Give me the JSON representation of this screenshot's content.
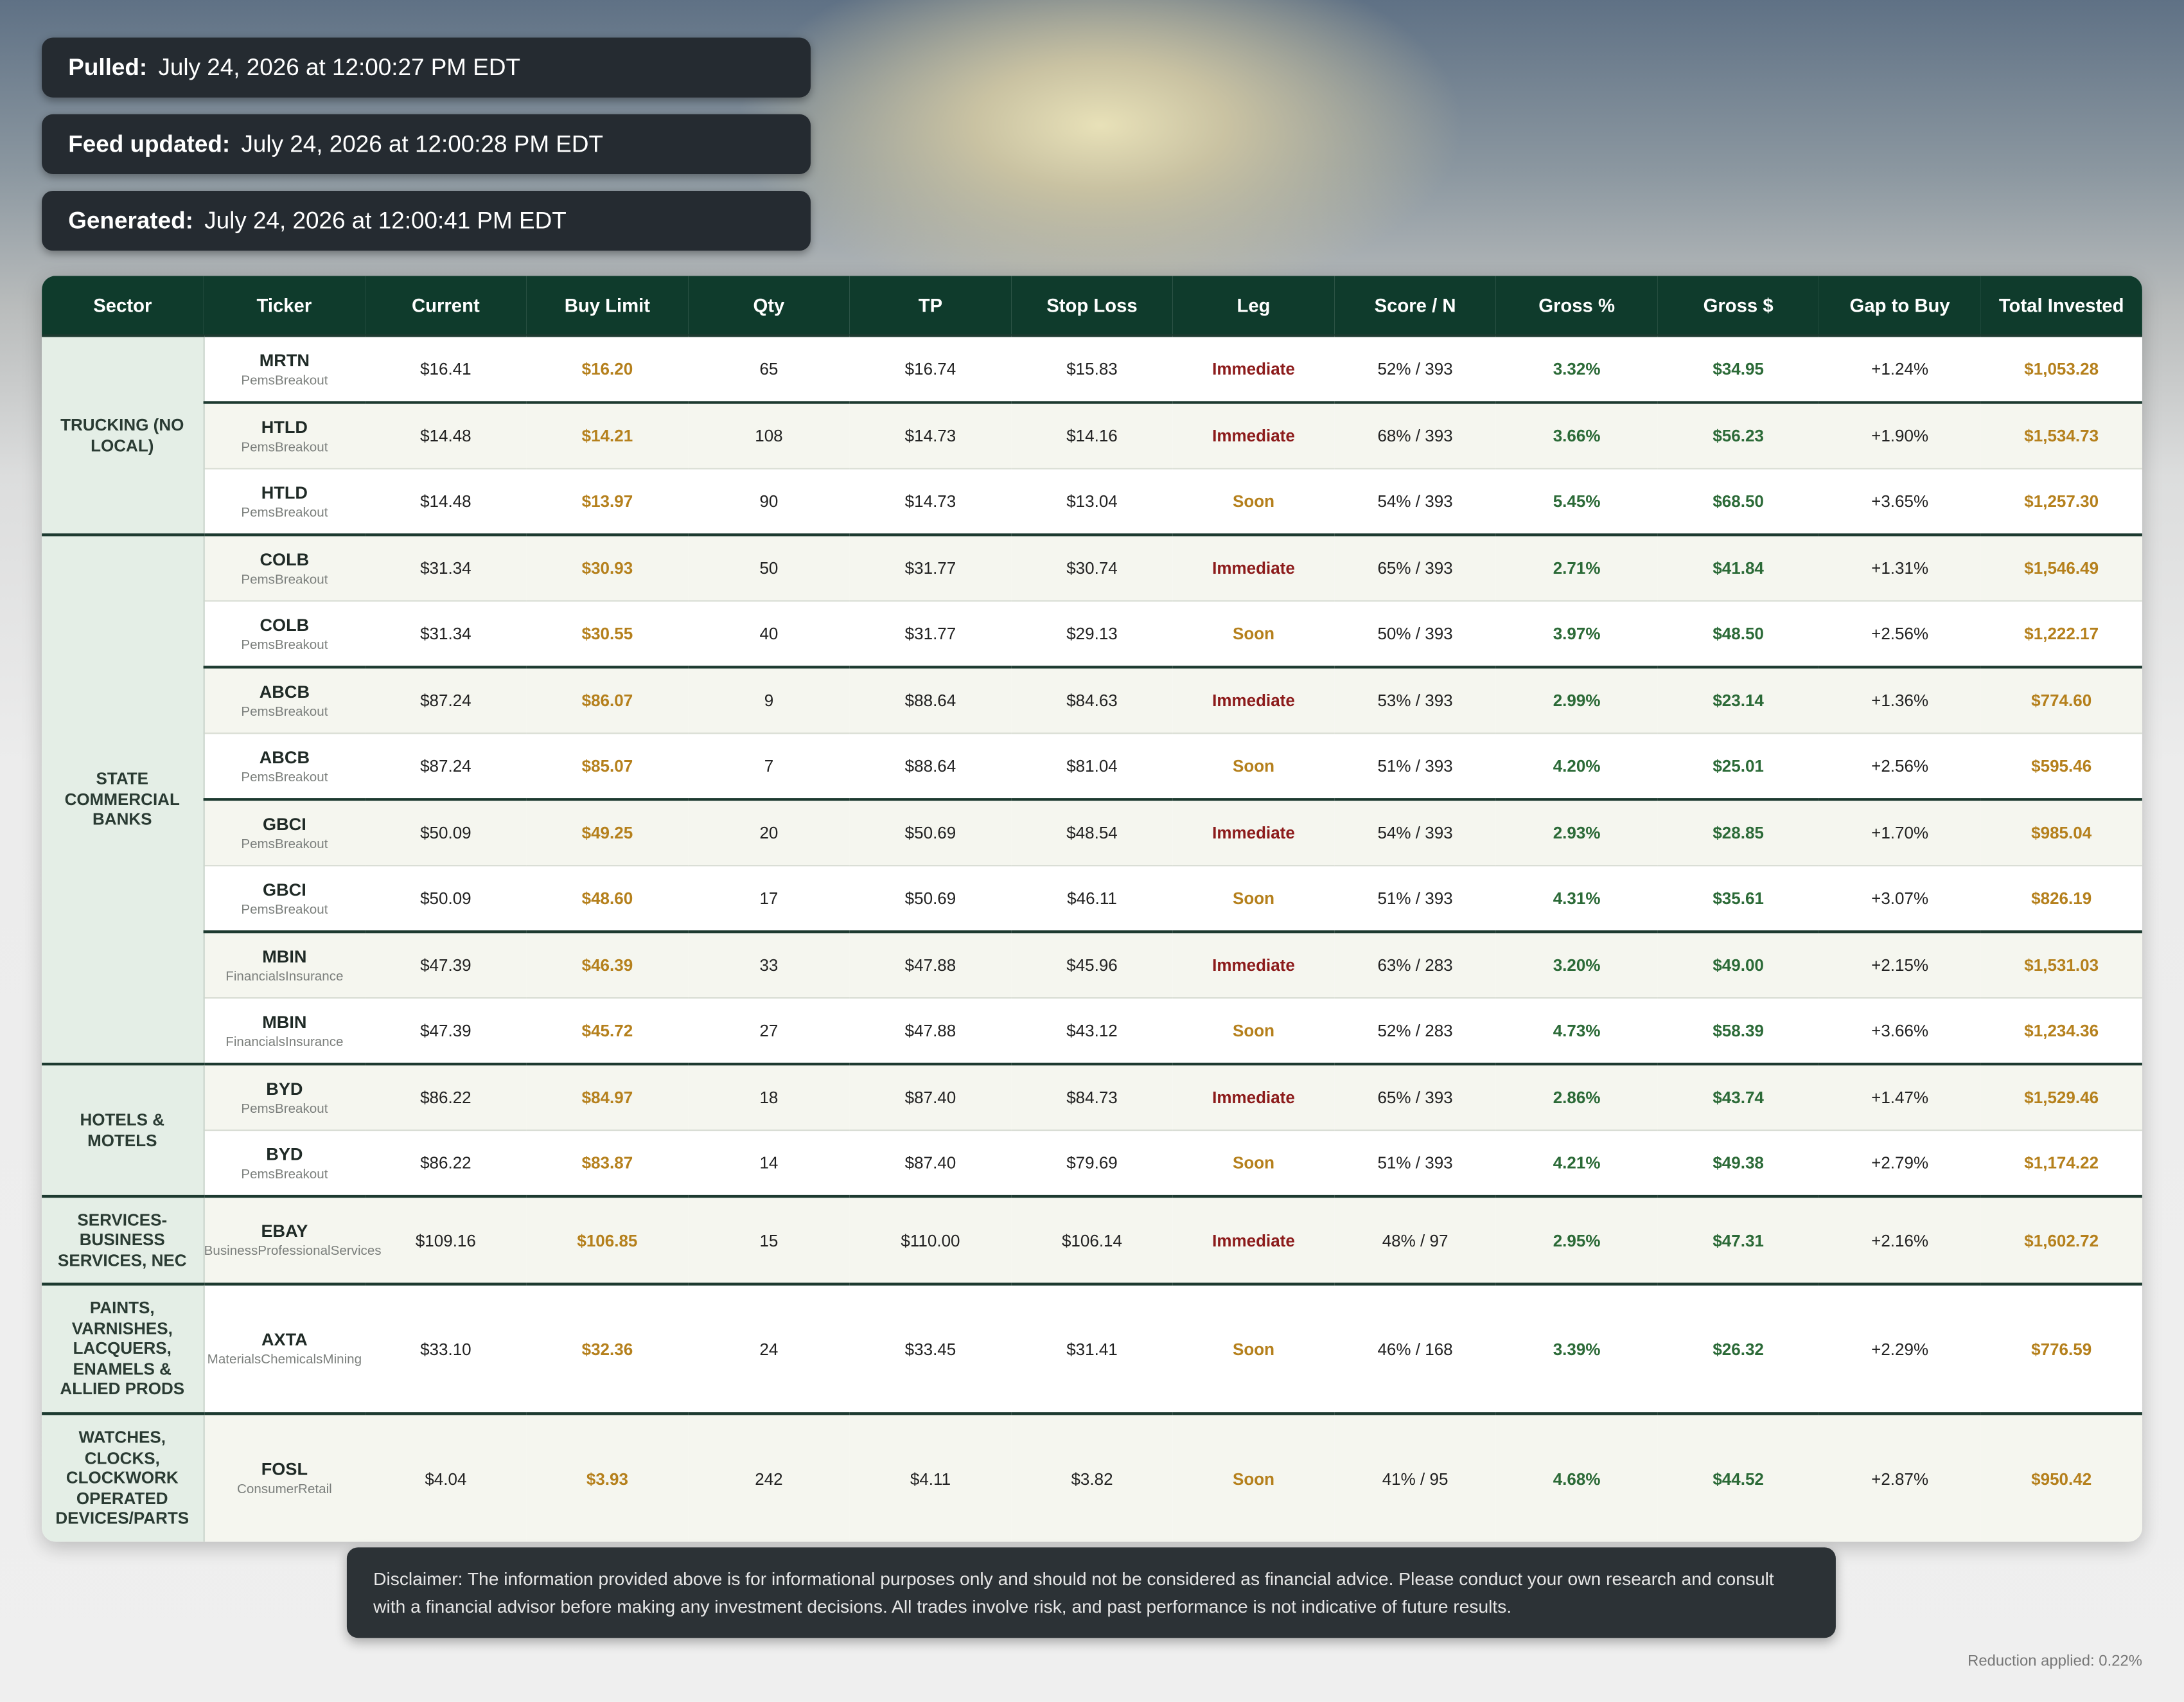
{
  "stamps": [
    {
      "label": "Pulled:",
      "value": "July 24, 2026 at 12:00:27 PM EDT"
    },
    {
      "label": "Feed updated:",
      "value": "July 24, 2026 at 12:00:28 PM EDT"
    },
    {
      "label": "Generated:",
      "value": "July 24, 2026 at 12:00:41 PM EDT"
    }
  ],
  "table": {
    "columns": [
      "Sector",
      "Ticker",
      "Current",
      "Buy Limit",
      "Qty",
      "TP",
      "Stop Loss",
      "Leg",
      "Score / N",
      "Gross %",
      "Gross $",
      "Gap to Buy",
      "Total Invested"
    ],
    "groups": [
      {
        "sector": "TRUCKING (NO LOCAL)",
        "rows": [
          {
            "ticker": "MRTN",
            "source": "PemsBreakout",
            "current": "$16.41",
            "buy_limit": "$16.20",
            "qty": "65",
            "tp": "$16.74",
            "stop_loss": "$15.83",
            "leg": "Immediate",
            "score": "52% / 393",
            "gross_pct": "3.32%",
            "gross_usd": "$34.95",
            "gap": "+1.24%",
            "total": "$1,053.28"
          },
          {
            "ticker": "HTLD",
            "source": "PemsBreakout",
            "current": "$14.48",
            "buy_limit": "$14.21",
            "qty": "108",
            "tp": "$14.73",
            "stop_loss": "$14.16",
            "leg": "Immediate",
            "score": "68% / 393",
            "gross_pct": "3.66%",
            "gross_usd": "$56.23",
            "gap": "+1.90%",
            "total": "$1,534.73"
          },
          {
            "ticker": "HTLD",
            "source": "PemsBreakout",
            "current": "$14.48",
            "buy_limit": "$13.97",
            "qty": "90",
            "tp": "$14.73",
            "stop_loss": "$13.04",
            "leg": "Soon",
            "score": "54% / 393",
            "gross_pct": "5.45%",
            "gross_usd": "$68.50",
            "gap": "+3.65%",
            "total": "$1,257.30"
          }
        ]
      },
      {
        "sector": "STATE COMMERCIAL BANKS",
        "rows": [
          {
            "ticker": "COLB",
            "source": "PemsBreakout",
            "current": "$31.34",
            "buy_limit": "$30.93",
            "qty": "50",
            "tp": "$31.77",
            "stop_loss": "$30.74",
            "leg": "Immediate",
            "score": "65% / 393",
            "gross_pct": "2.71%",
            "gross_usd": "$41.84",
            "gap": "+1.31%",
            "total": "$1,546.49"
          },
          {
            "ticker": "COLB",
            "source": "PemsBreakout",
            "current": "$31.34",
            "buy_limit": "$30.55",
            "qty": "40",
            "tp": "$31.77",
            "stop_loss": "$29.13",
            "leg": "Soon",
            "score": "50% / 393",
            "gross_pct": "3.97%",
            "gross_usd": "$48.50",
            "gap": "+2.56%",
            "total": "$1,222.17"
          },
          {
            "ticker": "ABCB",
            "source": "PemsBreakout",
            "current": "$87.24",
            "buy_limit": "$86.07",
            "qty": "9",
            "tp": "$88.64",
            "stop_loss": "$84.63",
            "leg": "Immediate",
            "score": "53% / 393",
            "gross_pct": "2.99%",
            "gross_usd": "$23.14",
            "gap": "+1.36%",
            "total": "$774.60"
          },
          {
            "ticker": "ABCB",
            "source": "PemsBreakout",
            "current": "$87.24",
            "buy_limit": "$85.07",
            "qty": "7",
            "tp": "$88.64",
            "stop_loss": "$81.04",
            "leg": "Soon",
            "score": "51% / 393",
            "gross_pct": "4.20%",
            "gross_usd": "$25.01",
            "gap": "+2.56%",
            "total": "$595.46"
          },
          {
            "ticker": "GBCI",
            "source": "PemsBreakout",
            "current": "$50.09",
            "buy_limit": "$49.25",
            "qty": "20",
            "tp": "$50.69",
            "stop_loss": "$48.54",
            "leg": "Immediate",
            "score": "54% / 393",
            "gross_pct": "2.93%",
            "gross_usd": "$28.85",
            "gap": "+1.70%",
            "total": "$985.04"
          },
          {
            "ticker": "GBCI",
            "source": "PemsBreakout",
            "current": "$50.09",
            "buy_limit": "$48.60",
            "qty": "17",
            "tp": "$50.69",
            "stop_loss": "$46.11",
            "leg": "Soon",
            "score": "51% / 393",
            "gross_pct": "4.31%",
            "gross_usd": "$35.61",
            "gap": "+3.07%",
            "total": "$826.19"
          },
          {
            "ticker": "MBIN",
            "source": "FinancialsInsurance",
            "current": "$47.39",
            "buy_limit": "$46.39",
            "qty": "33",
            "tp": "$47.88",
            "stop_loss": "$45.96",
            "leg": "Immediate",
            "score": "63% / 283",
            "gross_pct": "3.20%",
            "gross_usd": "$49.00",
            "gap": "+2.15%",
            "total": "$1,531.03"
          },
          {
            "ticker": "MBIN",
            "source": "FinancialsInsurance",
            "current": "$47.39",
            "buy_limit": "$45.72",
            "qty": "27",
            "tp": "$47.88",
            "stop_loss": "$43.12",
            "leg": "Soon",
            "score": "52% / 283",
            "gross_pct": "4.73%",
            "gross_usd": "$58.39",
            "gap": "+3.66%",
            "total": "$1,234.36"
          }
        ]
      },
      {
        "sector": "HOTELS & MOTELS",
        "rows": [
          {
            "ticker": "BYD",
            "source": "PemsBreakout",
            "current": "$86.22",
            "buy_limit": "$84.97",
            "qty": "18",
            "tp": "$87.40",
            "stop_loss": "$84.73",
            "leg": "Immediate",
            "score": "65% / 393",
            "gross_pct": "2.86%",
            "gross_usd": "$43.74",
            "gap": "+1.47%",
            "total": "$1,529.46"
          },
          {
            "ticker": "BYD",
            "source": "PemsBreakout",
            "current": "$86.22",
            "buy_limit": "$83.87",
            "qty": "14",
            "tp": "$87.40",
            "stop_loss": "$79.69",
            "leg": "Soon",
            "score": "51% / 393",
            "gross_pct": "4.21%",
            "gross_usd": "$49.38",
            "gap": "+2.79%",
            "total": "$1,174.22"
          }
        ]
      },
      {
        "sector": "SERVICES-BUSINESS SERVICES, NEC",
        "rows": [
          {
            "ticker": "EBAY",
            "source": "BusinessProfessionalServices",
            "current": "$109.16",
            "buy_limit": "$106.85",
            "qty": "15",
            "tp": "$110.00",
            "stop_loss": "$106.14",
            "leg": "Immediate",
            "score": "48% / 97",
            "gross_pct": "2.95%",
            "gross_usd": "$47.31",
            "gap": "+2.16%",
            "total": "$1,602.72"
          }
        ]
      },
      {
        "sector": "PAINTS, VARNISHES, LACQUERS, ENAMELS & ALLIED PRODS",
        "rows": [
          {
            "ticker": "AXTA",
            "source": "MaterialsChemicalsMining",
            "current": "$33.10",
            "buy_limit": "$32.36",
            "qty": "24",
            "tp": "$33.45",
            "stop_loss": "$31.41",
            "leg": "Soon",
            "score": "46% / 168",
            "gross_pct": "3.39%",
            "gross_usd": "$26.32",
            "gap": "+2.29%",
            "total": "$776.59"
          }
        ]
      },
      {
        "sector": "WATCHES, CLOCKS, CLOCKWORK OPERATED DEVICES/PARTS",
        "rows": [
          {
            "ticker": "FOSL",
            "source": "ConsumerRetail",
            "current": "$4.04",
            "buy_limit": "$3.93",
            "qty": "242",
            "tp": "$4.11",
            "stop_loss": "$3.82",
            "leg": "Soon",
            "score": "41% / 95",
            "gross_pct": "4.68%",
            "gross_usd": "$44.52",
            "gap": "+2.87%",
            "total": "$950.42"
          }
        ]
      }
    ]
  },
  "disclaimer": "Disclaimer: The information provided above is for informational purposes only and should not be considered as financial advice. Please conduct your own research and consult with a financial advisor before making any investment decisions. All trades involve risk, and past performance is not indicative of future results.",
  "footer": "Reduction applied: 0.22%"
}
